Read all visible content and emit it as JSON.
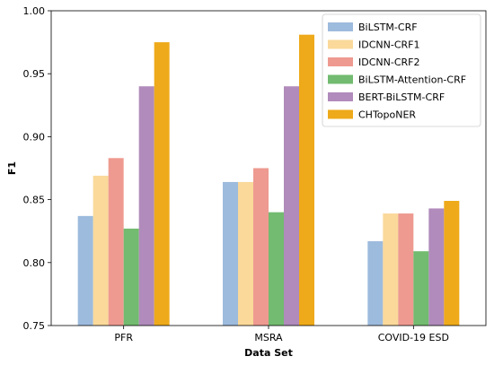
{
  "chart_data": {
    "type": "bar",
    "xlabel": "Data Set",
    "ylabel": "F1",
    "ylim": [
      0.75,
      1.0
    ],
    "yticks": [
      "0.75",
      "0.80",
      "0.85",
      "0.90",
      "0.95",
      "1.00"
    ],
    "categories": [
      "PFR",
      "MSRA",
      "COVID-19 ESD"
    ],
    "legend_position": "top-right",
    "grid": false,
    "series": [
      {
        "name": "BiLSTM-CRF",
        "color": "#9dbbdd",
        "values": [
          0.837,
          0.864,
          0.817
        ]
      },
      {
        "name": "IDCNN-CRF1",
        "color": "#fad99a",
        "values": [
          0.869,
          0.864,
          0.839
        ]
      },
      {
        "name": "IDCNN-CRF2",
        "color": "#ee9a90",
        "values": [
          0.883,
          0.875,
          0.839
        ]
      },
      {
        "name": "BiLSTM-Attention-CRF",
        "color": "#72bb70",
        "values": [
          0.827,
          0.84,
          0.809
        ]
      },
      {
        "name": "BERT-BiLSTM-CRF",
        "color": "#b08bbb",
        "values": [
          0.94,
          0.94,
          0.843
        ]
      },
      {
        "name": "CHTopoNER",
        "color": "#eeaa1a",
        "values": [
          0.975,
          0.981,
          0.849
        ]
      }
    ]
  }
}
